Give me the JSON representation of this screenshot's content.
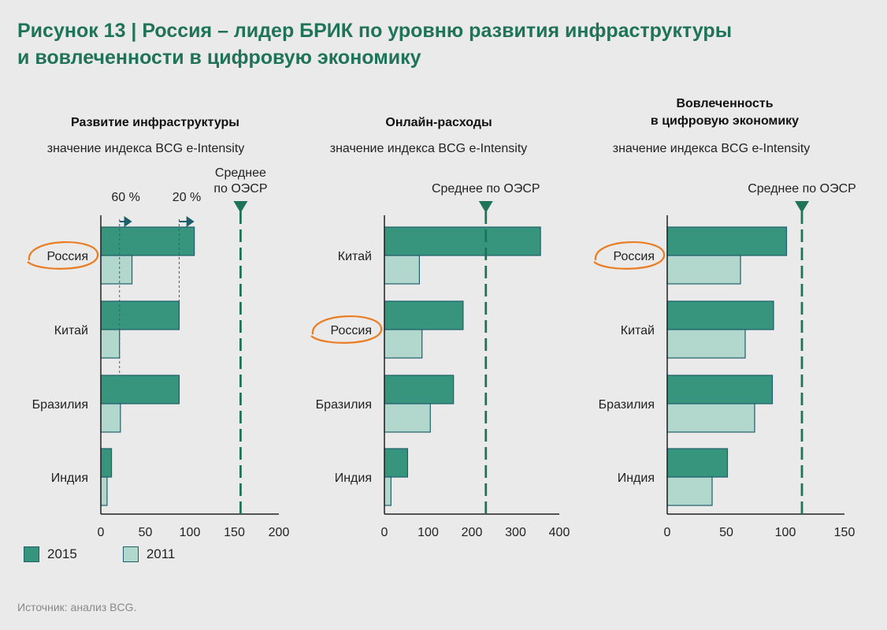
{
  "title_line1": "Рисунок 13 | Россия – лидер БРИК по уровню развития инфраструктуры",
  "title_line2": "и вовлеченности в цифровую экономику",
  "source": "Источник: анализ BCG.",
  "legend": [
    {
      "label": "2015",
      "color": "#38957d"
    },
    {
      "label": "2011",
      "color": "#b2d8cd"
    }
  ],
  "colors": {
    "bar2015": "#38957d",
    "bar2011": "#b2d8cd",
    "barStroke": "#1f5e6b",
    "oecd": "#1f7358",
    "highlight": "#ea7d23",
    "axis": "#222222"
  },
  "chart_data": [
    {
      "type": "bar",
      "orientation": "horizontal",
      "title": "Развитие инфраструктуры",
      "subtitle": "значение индекса BCG e-Intensity",
      "categories": [
        "Россия",
        "Китай",
        "Бразилия",
        "Индия"
      ],
      "highlight_category": "Россия",
      "series": [
        {
          "name": "2015",
          "values": [
            105,
            88,
            88,
            12
          ]
        },
        {
          "name": "2011",
          "values": [
            35,
            21,
            22,
            7
          ]
        }
      ],
      "xlim": [
        0,
        200
      ],
      "xticks": [
        0,
        50,
        100,
        150,
        200
      ],
      "reference": {
        "label_lines": [
          "Среднее",
          "по ОЭСР"
        ],
        "value": 157
      },
      "annotations": [
        {
          "label": "60 %",
          "from": 21,
          "to": 35
        },
        {
          "label": "20 %",
          "from": 88,
          "to": 105
        }
      ]
    },
    {
      "type": "bar",
      "orientation": "horizontal",
      "title": "Онлайн-расходы",
      "subtitle": "значение индекса BCG e-Intensity",
      "categories": [
        "Китай",
        "Россия",
        "Бразилия",
        "Индия"
      ],
      "highlight_category": "Россия",
      "series": [
        {
          "name": "2015",
          "values": [
            357,
            180,
            158,
            53
          ]
        },
        {
          "name": "2011",
          "values": [
            80,
            86,
            105,
            15
          ]
        }
      ],
      "xlim": [
        0,
        400
      ],
      "xticks": [
        0,
        100,
        200,
        300,
        400
      ],
      "reference": {
        "label_lines": [
          "Среднее по ОЭСР"
        ],
        "value": 232
      }
    },
    {
      "type": "bar",
      "orientation": "horizontal",
      "title": "Вовлеченность\nв цифровую экономику",
      "subtitle": "значение индекса BCG e-Intensity",
      "categories": [
        "Россия",
        "Китай",
        "Бразилия",
        "Индия"
      ],
      "highlight_category": "Россия",
      "series": [
        {
          "name": "2015",
          "values": [
            101,
            90,
            89,
            51
          ]
        },
        {
          "name": "2011",
          "values": [
            62,
            66,
            74,
            38
          ]
        }
      ],
      "xlim": [
        0,
        150
      ],
      "xticks": [
        0,
        50,
        100,
        150
      ],
      "reference": {
        "label_lines": [
          "Среднее по ОЭСР"
        ],
        "value": 114
      }
    }
  ]
}
